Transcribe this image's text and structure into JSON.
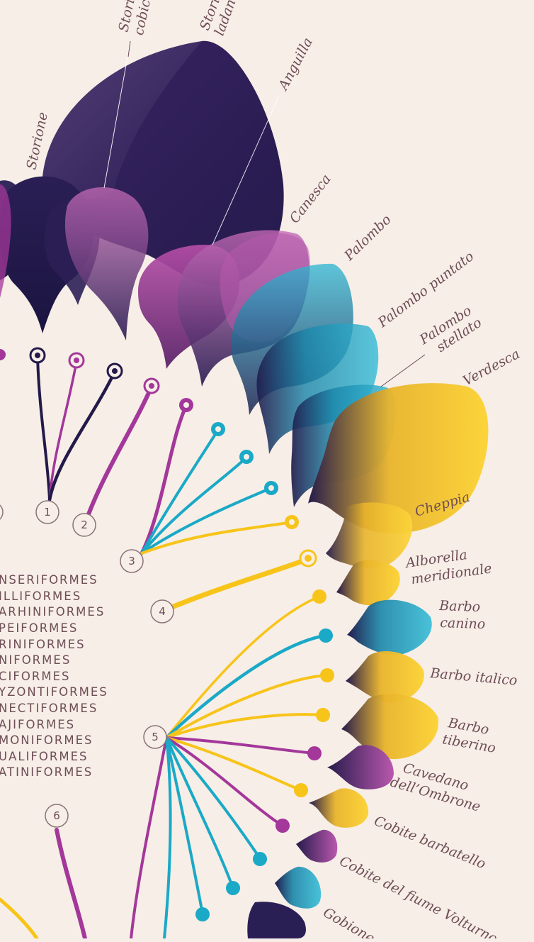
{
  "colors": {
    "background": "#f7eee7",
    "navy": "#231a4a",
    "purple": "#a3379a",
    "cyan": "#1aa9c6",
    "yellow": "#f7c41a",
    "text": "#6e4e57",
    "circle_stroke": "#8a7378"
  },
  "species_labels": [
    {
      "id": "storione",
      "lines": [
        "Storione"
      ]
    },
    {
      "id": "storione-cobice",
      "lines": [
        "Storione",
        "cobice"
      ]
    },
    {
      "id": "storione-ladano",
      "lines": [
        "Storione",
        "ladano"
      ]
    },
    {
      "id": "anguilla",
      "lines": [
        "Anguilla"
      ]
    },
    {
      "id": "canesca",
      "lines": [
        "Canesca"
      ]
    },
    {
      "id": "palombo",
      "lines": [
        "Palombo"
      ]
    },
    {
      "id": "palombo-puntato",
      "lines": [
        "Palombo puntato"
      ]
    },
    {
      "id": "palombo-stellato",
      "lines": [
        "Palombo",
        "stellato"
      ]
    },
    {
      "id": "verdesca",
      "lines": [
        "Verdesca"
      ]
    },
    {
      "id": "cheppia",
      "lines": [
        "Cheppia"
      ]
    },
    {
      "id": "alborella-meridionale",
      "lines": [
        "Alborella",
        "meridionale"
      ]
    },
    {
      "id": "barbo-canino",
      "lines": [
        "Barbo",
        "canino"
      ]
    },
    {
      "id": "barbo-italico",
      "lines": [
        "Barbo italico"
      ]
    },
    {
      "id": "barbo-tiberino",
      "lines": [
        "Barbo",
        "tiberino"
      ]
    },
    {
      "id": "cavedano-ombrone",
      "lines": [
        "Cavedano",
        "dell’Ombrone"
      ]
    },
    {
      "id": "cobite-barbatello",
      "lines": [
        "Cobite barbatello"
      ]
    },
    {
      "id": "cobite-fiume-volturno",
      "lines": [
        "Cobite del fiume Volturno"
      ]
    },
    {
      "id": "gobione",
      "lines": [
        "Gobione"
      ]
    }
  ],
  "order_labels": [
    "NSERIFORMES",
    "ILLIFORMES",
    "ARHINIFORMES",
    "PEIFORMES",
    "RINIFORMES",
    "NIFORMES",
    "CIFORMES",
    "YZONTIFORMES",
    "NECTIFORMES",
    "AJIFORMES",
    "MONIFORMES",
    "UALIFORMES",
    "ATINIFORMES"
  ],
  "group_numbers": [
    "1",
    "2",
    "3",
    "4",
    "5",
    "6"
  ]
}
